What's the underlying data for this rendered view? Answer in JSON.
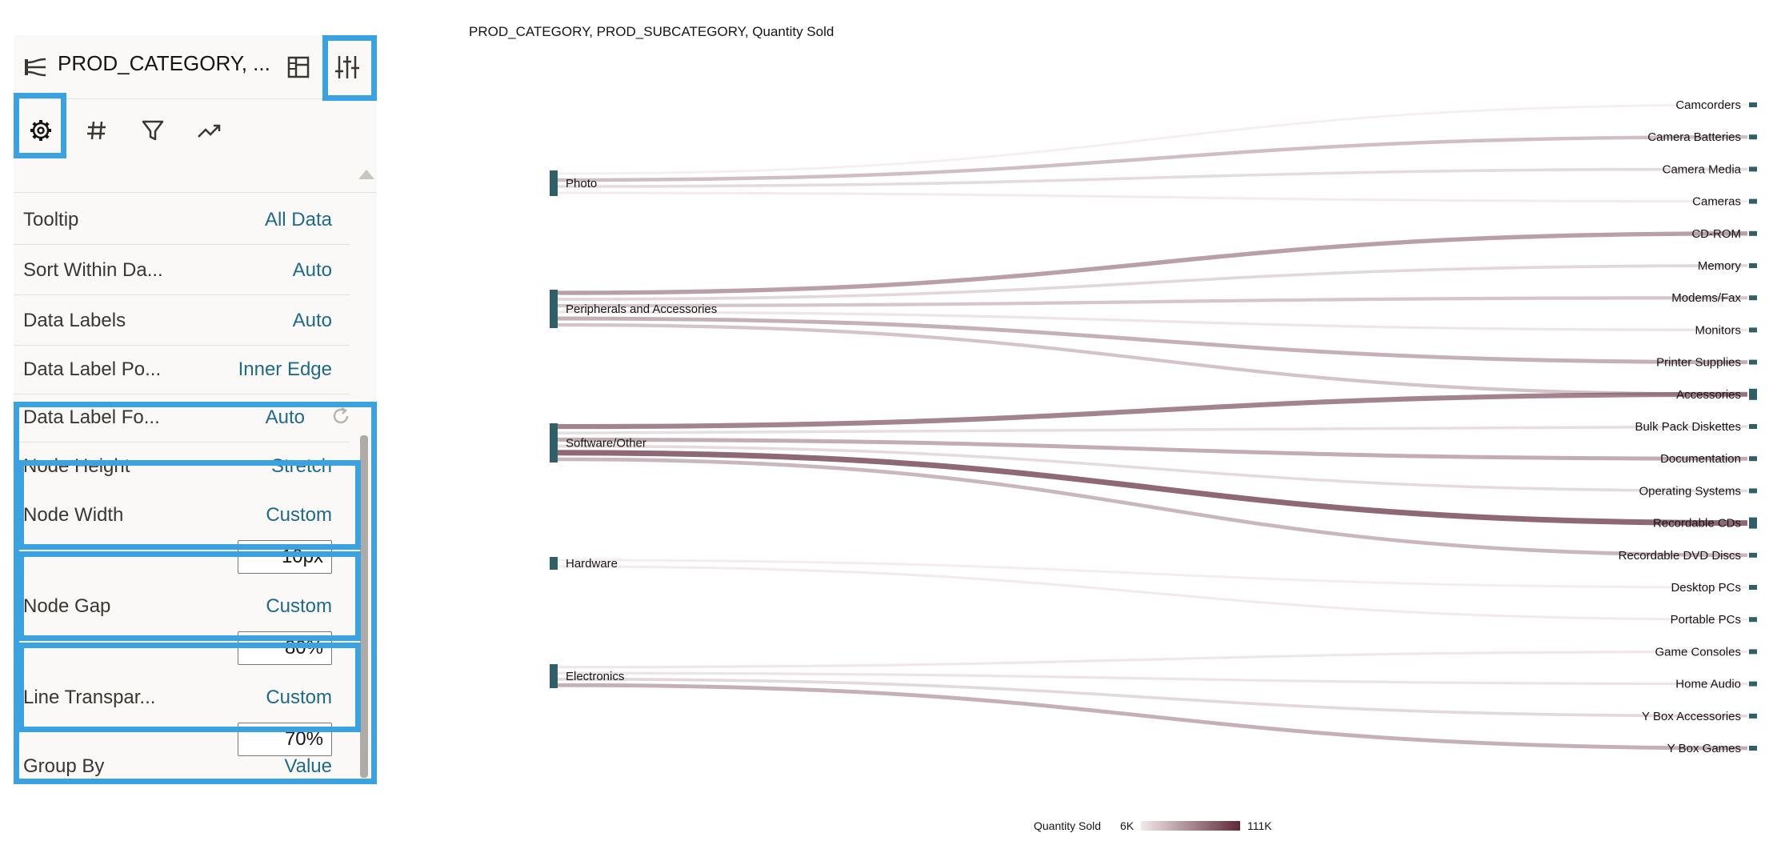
{
  "panel": {
    "header_title": "PROD_CATEGORY, ...",
    "header_icon": "sankey-chart-icon",
    "layout_icon": "layout-icon",
    "properties_icon": "sliders-icon",
    "tabs": [
      {
        "icon": "gear-icon",
        "selected": true
      },
      {
        "icon": "hash-icon",
        "selected": false
      },
      {
        "icon": "filter-icon",
        "selected": false
      },
      {
        "icon": "trend-icon",
        "selected": false
      }
    ],
    "rows": [
      {
        "label": "Tooltip",
        "value": "All Data"
      },
      {
        "label": "Sort Within Da...",
        "value": "Auto"
      },
      {
        "label": "Data Labels",
        "value": "Auto"
      },
      {
        "label": "Data Label Po...",
        "value": "Inner Edge"
      },
      {
        "label": "Data Label Fo...",
        "value": "Auto"
      },
      {
        "label": "Node Height",
        "value": "Stretch"
      },
      {
        "label": "Node Width",
        "value": "Custom",
        "input": "10px"
      },
      {
        "label": "Node Gap",
        "value": "Custom",
        "input": "80%"
      },
      {
        "label": "Line Transpar...",
        "value": "Custom",
        "input": "70%"
      },
      {
        "label": "Group By",
        "value": "Value"
      }
    ],
    "highlight_color": "#3aa2e1",
    "value_color": "#1d6a8c"
  },
  "chart_data": {
    "type": "sankey",
    "title": "PROD_CATEGORY, PROD_SUBCATEGORY, Quantity Sold",
    "sources": [
      "Photo",
      "Peripherals and Accessories",
      "Software/Other",
      "Hardware",
      "Electronics"
    ],
    "targets": [
      "Camcorders",
      "Camera Batteries",
      "Camera Media",
      "Cameras",
      "CD-ROM",
      "Memory",
      "Modems/Fax",
      "Monitors",
      "Printer Supplies",
      "Accessories",
      "Bulk Pack Diskettes",
      "Documentation",
      "Operating Systems",
      "Recordable CDs",
      "Recordable DVD Discs",
      "Desktop PCs",
      "Portable PCs",
      "Game Consoles",
      "Home Audio",
      "Y Box Accessories",
      "Y Box Games"
    ],
    "links": [
      {
        "source": "Photo",
        "target": "Camcorders",
        "value": 6
      },
      {
        "source": "Photo",
        "target": "Camera Batteries",
        "value": 44
      },
      {
        "source": "Photo",
        "target": "Camera Media",
        "value": 22
      },
      {
        "source": "Photo",
        "target": "Cameras",
        "value": 9
      },
      {
        "source": "Peripherals and Accessories",
        "target": "CD-ROM",
        "value": 68
      },
      {
        "source": "Peripherals and Accessories",
        "target": "Memory",
        "value": 25
      },
      {
        "source": "Peripherals and Accessories",
        "target": "Modems/Fax",
        "value": 38
      },
      {
        "source": "Peripherals and Accessories",
        "target": "Monitors",
        "value": 14
      },
      {
        "source": "Peripherals and Accessories",
        "target": "Printer Supplies",
        "value": 56
      },
      {
        "source": "Peripherals and Accessories",
        "target": "Accessories",
        "value": 40
      },
      {
        "source": "Software/Other",
        "target": "Accessories",
        "value": 90
      },
      {
        "source": "Software/Other",
        "target": "Bulk Pack Diskettes",
        "value": 20
      },
      {
        "source": "Software/Other",
        "target": "Documentation",
        "value": 58
      },
      {
        "source": "Software/Other",
        "target": "Operating Systems",
        "value": 22
      },
      {
        "source": "Software/Other",
        "target": "Recordable CDs",
        "value": 111
      },
      {
        "source": "Software/Other",
        "target": "Recordable DVD Discs",
        "value": 50
      },
      {
        "source": "Hardware",
        "target": "Desktop PCs",
        "value": 8
      },
      {
        "source": "Hardware",
        "target": "Portable PCs",
        "value": 10
      },
      {
        "source": "Electronics",
        "target": "Game Consoles",
        "value": 12
      },
      {
        "source": "Electronics",
        "target": "Home Audio",
        "value": 15
      },
      {
        "source": "Electronics",
        "target": "Y Box Accessories",
        "value": 24
      },
      {
        "source": "Electronics",
        "target": "Y Box Games",
        "value": 55
      }
    ],
    "legend": {
      "label": "Quantity Sold",
      "min_label": "6K",
      "max_label": "111K",
      "min": 6,
      "max": 111,
      "unit": "K"
    },
    "colors": {
      "node": "#2f5f67",
      "link_low": "#f2e8ea",
      "link_high": "#5e2a3a"
    }
  }
}
